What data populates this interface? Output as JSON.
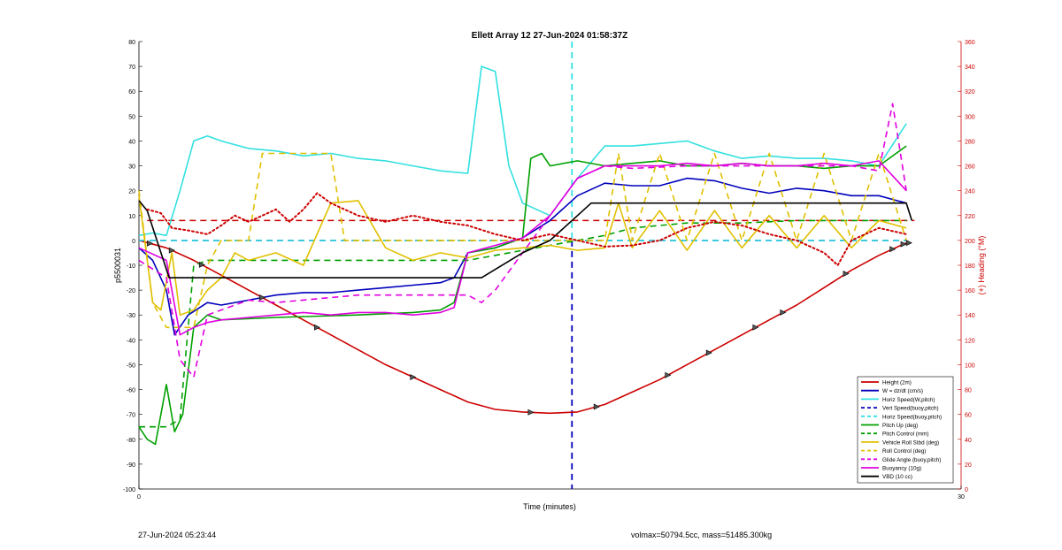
{
  "footer": {
    "left": "27-Jun-2024 05:23:44",
    "right": "volmax=50794.5cc, mass=51485.300kg"
  },
  "chart_data": {
    "type": "line",
    "title": "Ellett Array 12 27-Jun-2024 01:58:37Z",
    "xlabel": "Time (minutes)",
    "ylabel": "p5500031",
    "y2label": "(+) Heading (°M)",
    "xlim": [
      0,
      30
    ],
    "ylim": [
      -100,
      80
    ],
    "y2lim": [
      0,
      360
    ],
    "xticks": [
      0,
      30
    ],
    "yticks": [
      -100,
      -90,
      -80,
      -70,
      -60,
      -50,
      -40,
      -30,
      -20,
      -10,
      0,
      10,
      20,
      30,
      40,
      50,
      60,
      70,
      80
    ],
    "y2ticks": [
      0,
      20,
      40,
      60,
      80,
      100,
      120,
      140,
      160,
      180,
      200,
      220,
      240,
      260,
      280,
      300,
      320,
      340,
      360
    ],
    "grid": false,
    "legend_position": "bottom-right",
    "colors": {
      "right_axis": "#cc0000",
      "height": "#cc0000",
      "w": "#0000bb",
      "horiz": "#33e0e0",
      "pitch": "#00a000",
      "roll": "#e0c000",
      "glide": "#e000e0",
      "vbd": "#000000",
      "heading": "#cc0000"
    },
    "series": [
      {
        "name": "Height (2m)",
        "color": "#cc0000",
        "dash": "solid",
        "x": [
          0,
          1,
          2,
          3,
          4,
          5,
          6,
          7,
          8,
          9,
          10,
          11,
          12,
          13,
          14,
          15,
          16,
          17,
          18,
          19,
          20,
          21,
          22,
          23,
          24,
          25,
          26,
          27,
          28
        ],
        "y": [
          0,
          -3,
          -8,
          -14,
          -20,
          -26,
          -32,
          -38,
          -44,
          -50,
          -55,
          -60,
          -65,
          -68,
          -69,
          -69.5,
          -69,
          -66,
          -61,
          -56,
          -50,
          -44,
          -38,
          -32,
          -26,
          -19,
          -12,
          -6,
          -1
        ]
      },
      {
        "name": "W = dz/dt (cm/s)",
        "color": "#0000bb",
        "dash": "solid",
        "x": [
          0,
          0.5,
          1,
          1.3,
          1.8,
          2.5,
          3,
          4,
          5,
          6,
          7,
          8,
          9,
          10,
          11,
          11.5,
          12,
          13,
          14,
          15,
          16,
          17,
          18,
          19,
          20,
          21,
          22,
          23,
          24,
          25,
          26,
          27,
          28
        ],
        "y": [
          -3,
          -8,
          -20,
          -38,
          -30,
          -25,
          -26,
          -24,
          -22,
          -21,
          -21,
          -20,
          -19,
          -18,
          -17,
          -15,
          -5,
          -3,
          1,
          8,
          18,
          23,
          22,
          22,
          25,
          24,
          21,
          19,
          21,
          20,
          18,
          18,
          15
        ]
      },
      {
        "name": "Horiz Speed(W,pitch)",
        "color": "#33e0e0",
        "dash": "solid",
        "x": [
          0,
          0.5,
          1,
          1.5,
          2,
          2.5,
          3,
          4,
          5,
          6,
          7,
          8,
          9,
          10,
          11,
          12,
          12.5,
          13,
          13.5,
          14,
          15,
          16,
          17,
          18,
          19,
          20,
          21,
          22,
          23,
          24,
          25,
          26,
          27,
          28
        ],
        "y": [
          2,
          3,
          2,
          20,
          40,
          42,
          40,
          37,
          36,
          34,
          35,
          33,
          32,
          30,
          28,
          27,
          70,
          68,
          30,
          15,
          10,
          25,
          38,
          38,
          39,
          40,
          36,
          33,
          34,
          33,
          33,
          32,
          30,
          47
        ]
      },
      {
        "name": "Vert Speed(buoy,pitch)",
        "color": "#0000bb",
        "dash": "dashed",
        "x": [
          0,
          1,
          2,
          3,
          5,
          8,
          10,
          12,
          14,
          16,
          18,
          20,
          22,
          24,
          26,
          28
        ],
        "y": [
          0,
          0,
          0,
          0,
          0,
          0,
          0,
          0,
          0,
          0,
          0,
          0,
          0,
          0,
          0,
          0
        ]
      },
      {
        "name": "Horiz Speed(buoy,pitch)",
        "color": "#33e0e0",
        "dash": "dashed",
        "x": [
          0,
          1,
          2,
          3,
          5,
          8,
          10,
          12,
          14,
          16,
          18,
          20,
          22,
          24,
          26,
          28
        ],
        "y": [
          0,
          0,
          0,
          0,
          0,
          0,
          0,
          0,
          0,
          0,
          0,
          0,
          0,
          0,
          0,
          0
        ]
      },
      {
        "name": "Pitch Up (deg)",
        "color": "#00a000",
        "dash": "solid",
        "x": [
          0,
          0.3,
          0.6,
          1,
          1.3,
          1.6,
          2,
          2.5,
          3,
          5,
          8,
          10,
          11,
          11.5,
          12,
          13,
          14,
          14.3,
          14.7,
          15,
          16,
          17,
          18,
          19,
          20,
          21,
          22,
          23,
          24,
          25,
          26,
          27,
          28
        ],
        "y": [
          -75,
          -80,
          -82,
          -58,
          -77,
          -70,
          -35,
          -30,
          -32,
          -31,
          -30,
          -29,
          -28,
          -25,
          -5,
          -3,
          1,
          33,
          35,
          30,
          32,
          30,
          31,
          32,
          30,
          30,
          31,
          30,
          30,
          29,
          30,
          30,
          38
        ]
      },
      {
        "name": "Pitch Control (mm)",
        "color": "#00a000",
        "dash": "dashed",
        "x": [
          0,
          1,
          1.5,
          2,
          2.5,
          3,
          4,
          5,
          8,
          10,
          11,
          12,
          13,
          14,
          15,
          16,
          17,
          18,
          20,
          22,
          24,
          26,
          28
        ],
        "y": [
          -75,
          -75,
          -72,
          -10,
          -8,
          -8,
          -8,
          -8,
          -8,
          -8,
          -8,
          -8,
          -6,
          -4,
          -2,
          0,
          2,
          5,
          7,
          7,
          8,
          8,
          8
        ]
      },
      {
        "name": "Vehicle Roll Stbd (deg)",
        "color": "#e0c000",
        "dash": "solid",
        "x": [
          0,
          0.5,
          0.8,
          1.2,
          1.5,
          2,
          2.5,
          3,
          3.5,
          4,
          5,
          6,
          7,
          8,
          9,
          10,
          11,
          12,
          13,
          14,
          15,
          16,
          17,
          17.5,
          18,
          19,
          20,
          21,
          22,
          23,
          24,
          25,
          26,
          27,
          28
        ],
        "y": [
          18,
          -25,
          -28,
          -5,
          -30,
          -28,
          -20,
          -15,
          -5,
          -8,
          -5,
          -10,
          15,
          16,
          -3,
          -8,
          -5,
          -7,
          -4,
          -3,
          -2,
          -4,
          -3,
          15,
          -3,
          12,
          -4,
          12,
          -3,
          10,
          -3,
          10,
          -3,
          8,
          5
        ]
      },
      {
        "name": "Roll Control (deg)",
        "color": "#e0c000",
        "dash": "dashed",
        "x": [
          0,
          0.5,
          1,
          1.5,
          2,
          2.5,
          3,
          4,
          4.5,
          5,
          6,
          7,
          7.5,
          8,
          9,
          10,
          11,
          12,
          13,
          14,
          16,
          17,
          17.5,
          18,
          19,
          20,
          21,
          22,
          23,
          24,
          25,
          26,
          27,
          28
        ],
        "y": [
          20,
          -25,
          -35,
          -35,
          -35,
          -10,
          0,
          0,
          35,
          35,
          35,
          35,
          0,
          0,
          0,
          0,
          0,
          0,
          0,
          0,
          0,
          0,
          35,
          0,
          35,
          0,
          35,
          0,
          35,
          0,
          35,
          0,
          35,
          0
        ]
      },
      {
        "name": "Glide Angle (buoy,pitch)",
        "color": "#e000e0",
        "dash": "dashed",
        "x": [
          0,
          1,
          1.5,
          2,
          2.5,
          3,
          4,
          5,
          8,
          10,
          11,
          12,
          12.5,
          13,
          14,
          15,
          16,
          17,
          18,
          20,
          22,
          24,
          26,
          27,
          27.5,
          28
        ],
        "y": [
          -8,
          -15,
          -48,
          -55,
          -30,
          -28,
          -24,
          -25,
          -22,
          -22,
          -22,
          -22,
          -25,
          -20,
          -5,
          10,
          25,
          30,
          29,
          30,
          30,
          30,
          30,
          28,
          55,
          20
        ]
      },
      {
        "name": "Buoyancy (10g)",
        "color": "#e000e0",
        "dash": "solid",
        "x": [
          0,
          1,
          1.5,
          2,
          2.5,
          3,
          4,
          5,
          6,
          7,
          8,
          9,
          10,
          11,
          11.5,
          12,
          13,
          14,
          15,
          16,
          17,
          18,
          19,
          20,
          21,
          22,
          23,
          24,
          25,
          26,
          27,
          28
        ],
        "y": [
          -3,
          -8,
          -38,
          -35,
          -33,
          -32,
          -31,
          -30,
          -29,
          -30,
          -29,
          -29,
          -30,
          -29,
          -27,
          -5,
          -2,
          1,
          10,
          25,
          30,
          30,
          30,
          31,
          30,
          31,
          30,
          30,
          31,
          30,
          32,
          20
        ]
      },
      {
        "name": "VBD (10 cc)",
        "color": "#000000",
        "dash": "solid",
        "x": [
          0,
          0.3,
          1.1,
          2,
          4,
          8,
          12,
          12.5,
          14,
          15,
          16,
          16.5,
          20,
          24,
          28,
          28.2
        ],
        "y": [
          16,
          12,
          -15,
          -15,
          -15,
          -15,
          -15,
          -15,
          -5,
          0,
          10,
          15,
          15,
          15,
          15,
          8
        ]
      }
    ],
    "heading_series": {
      "name": "Heading",
      "axis": "right",
      "color": "#cc0000",
      "dash": "dotted",
      "x": [
        0.3,
        0.8,
        1.2,
        1.8,
        2.5,
        3,
        3.5,
        4,
        5,
        5.5,
        6,
        6.5,
        7,
        7.5,
        8,
        9,
        10,
        11,
        12,
        13,
        14,
        15,
        16,
        17,
        18,
        19,
        20,
        21,
        22,
        23,
        24,
        25,
        25.5,
        26,
        27,
        28
      ],
      "y": [
        225,
        222,
        210,
        208,
        205,
        212,
        220,
        215,
        225,
        215,
        225,
        238,
        230,
        225,
        220,
        215,
        220,
        215,
        212,
        205,
        200,
        205,
        200,
        195,
        196,
        200,
        210,
        215,
        212,
        205,
        200,
        190,
        180,
        200,
        210,
        205
      ]
    },
    "reference_lines": [
      {
        "orientation": "horizontal",
        "axis": "right",
        "value": 216,
        "color": "#cc0000",
        "dash": "dashed"
      },
      {
        "orientation": "vertical",
        "value": 15.8,
        "color": "#0000bb",
        "dash": "dashed"
      },
      {
        "orientation": "vertical",
        "value": 15.8,
        "color": "#33e0e0",
        "dash": "dashed"
      }
    ],
    "markers": {
      "on_series": "Height (2m)",
      "x": [
        0.4,
        1.2,
        2.3,
        4.5,
        6.5,
        10,
        14.3,
        16.7,
        19.3,
        20.8,
        22.5,
        23.5,
        25.8,
        27.5,
        27.9,
        28.1
      ]
    }
  }
}
